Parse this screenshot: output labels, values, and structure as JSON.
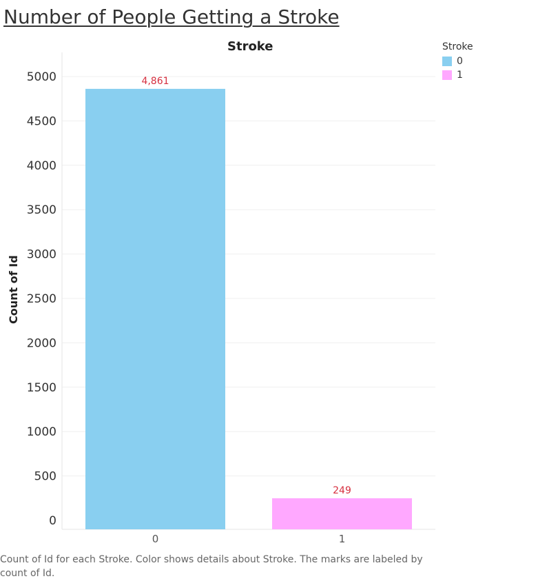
{
  "title": "Number of People Getting a Stroke",
  "caption": "Count of Id for each Stroke.  Color shows details about Stroke.  The marks are labeled by count of Id.",
  "chart_data": {
    "type": "bar",
    "title": "Number of People Getting a Stroke",
    "header": "Stroke",
    "categories": [
      "0",
      "1"
    ],
    "values": [
      4861,
      249
    ],
    "value_labels": [
      "4,861",
      "249"
    ],
    "colors": [
      "#89CFF0",
      "#FFA8FF"
    ],
    "label_color": "#D62F3F",
    "xlabel": "",
    "ylabel": "Count of Id",
    "ylim": [
      0,
      5000
    ],
    "yticks": [
      0,
      500,
      1000,
      1500,
      2000,
      2500,
      3000,
      3500,
      4000,
      4500,
      5000
    ],
    "grid": true,
    "legend": {
      "title": "Stroke",
      "position": "top-right",
      "items": [
        {
          "label": "0",
          "color": "#89CFF0"
        },
        {
          "label": "1",
          "color": "#FFA8FF"
        }
      ]
    }
  }
}
